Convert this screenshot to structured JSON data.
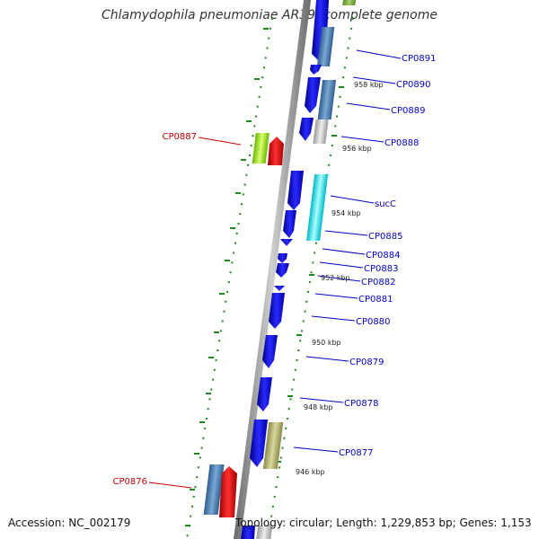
{
  "title": "Chlamydophila pneumoniae AR39, complete genome",
  "footer": {
    "accession": "Accession: NC_002179",
    "summary": "Topology: circular; Length: 1,229,853 bp; Genes: 1,153"
  },
  "colors": {
    "backbone": "#8a8a8a",
    "dotted_guide": "#1a8a1a",
    "forward_label": "#0000cc",
    "reverse_label": "#cc0000",
    "gene_default": "#0000ee"
  },
  "forward_gene_labels": [
    "CP0891",
    "CP0890",
    "CP0889",
    "CP0888",
    "sucC",
    "CP0885",
    "CP0884",
    "CP0883",
    "CP0882",
    "CP0881",
    "CP0880",
    "CP0879",
    "CP0878",
    "CP0877"
  ],
  "reverse_gene_labels": [
    "CP0887",
    "CP0876"
  ],
  "kbp_ticks": [
    "958 kbp",
    "956 kbp",
    "954 kbp",
    "952 kbp",
    "950 kbp",
    "948 kbp",
    "946 kbp"
  ]
}
